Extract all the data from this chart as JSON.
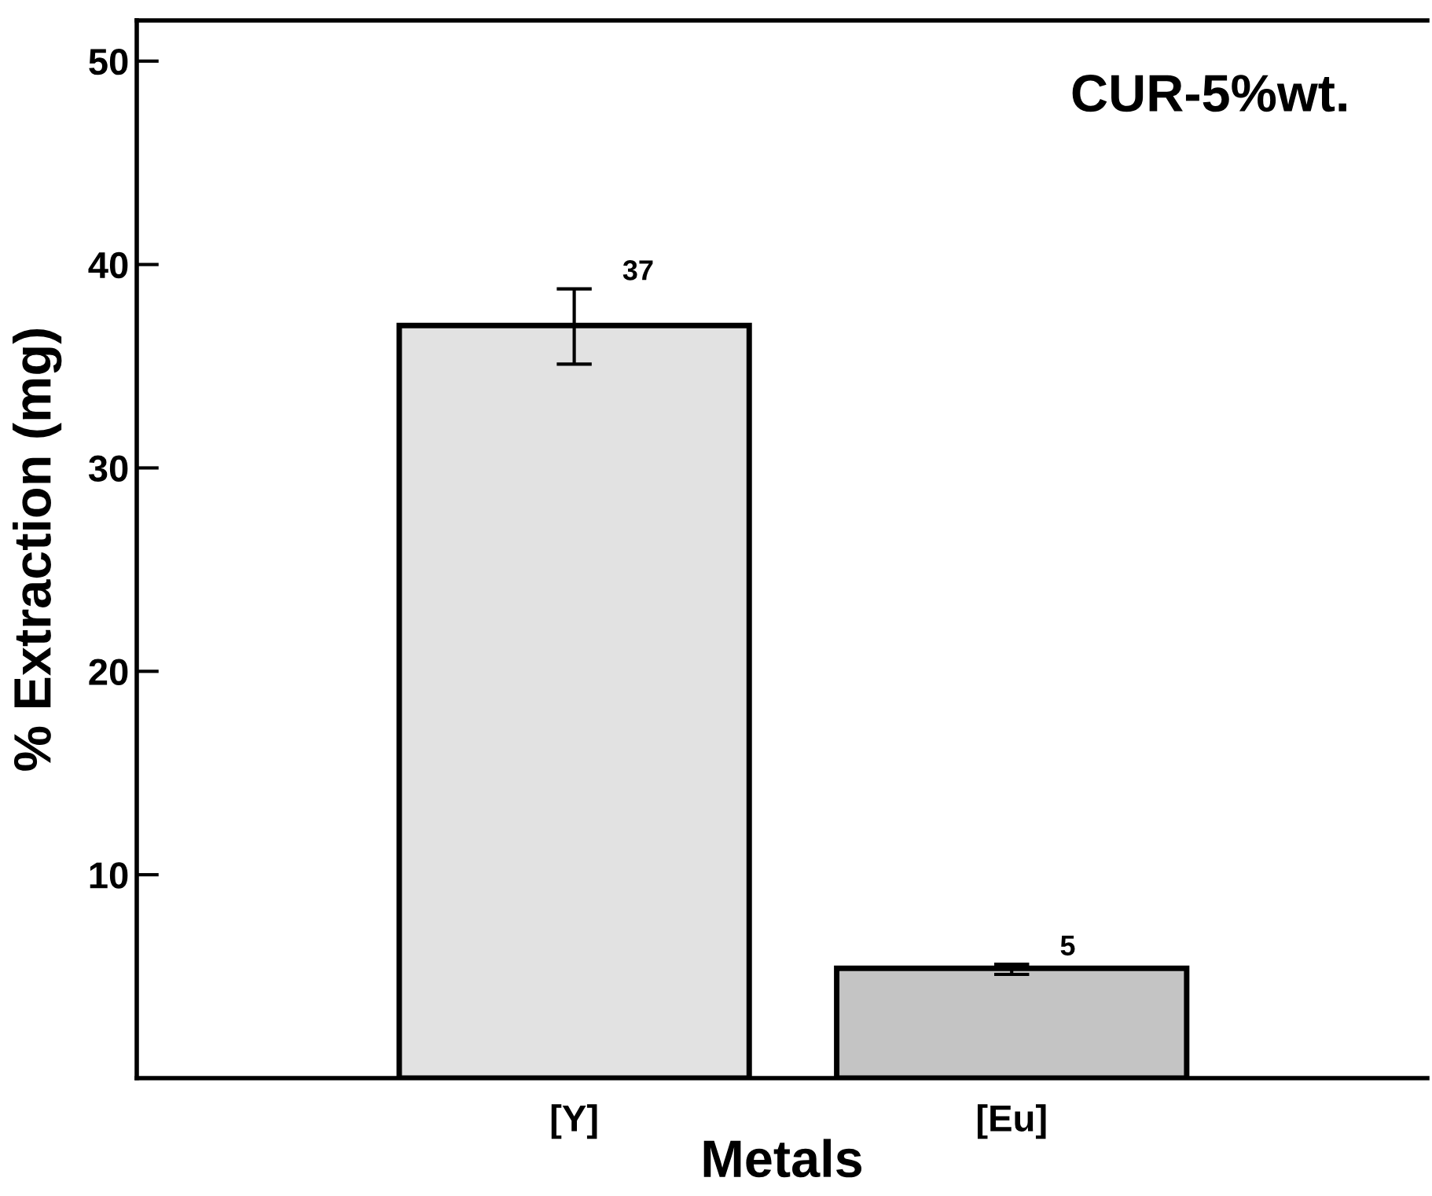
{
  "chart_data": {
    "type": "bar",
    "xlabel": "Metals",
    "ylabel": "% Extraction (mg)",
    "categories": [
      "[Y]",
      "[Eu]"
    ],
    "values": [
      37.0,
      5.4
    ],
    "colors": [
      "#e2e2e2",
      "#c4c4c4"
    ],
    "errors": [
      [
        35.1,
        38.8
      ],
      [
        5.1,
        5.6
      ]
    ],
    "value_labels": [
      "37",
      "5"
    ],
    "ylim": [
      0,
      52
    ],
    "yticks": [
      10,
      20,
      30,
      40,
      50
    ],
    "annotations": [
      "CUR-5%wt."
    ],
    "grid": false,
    "legend": false
  }
}
